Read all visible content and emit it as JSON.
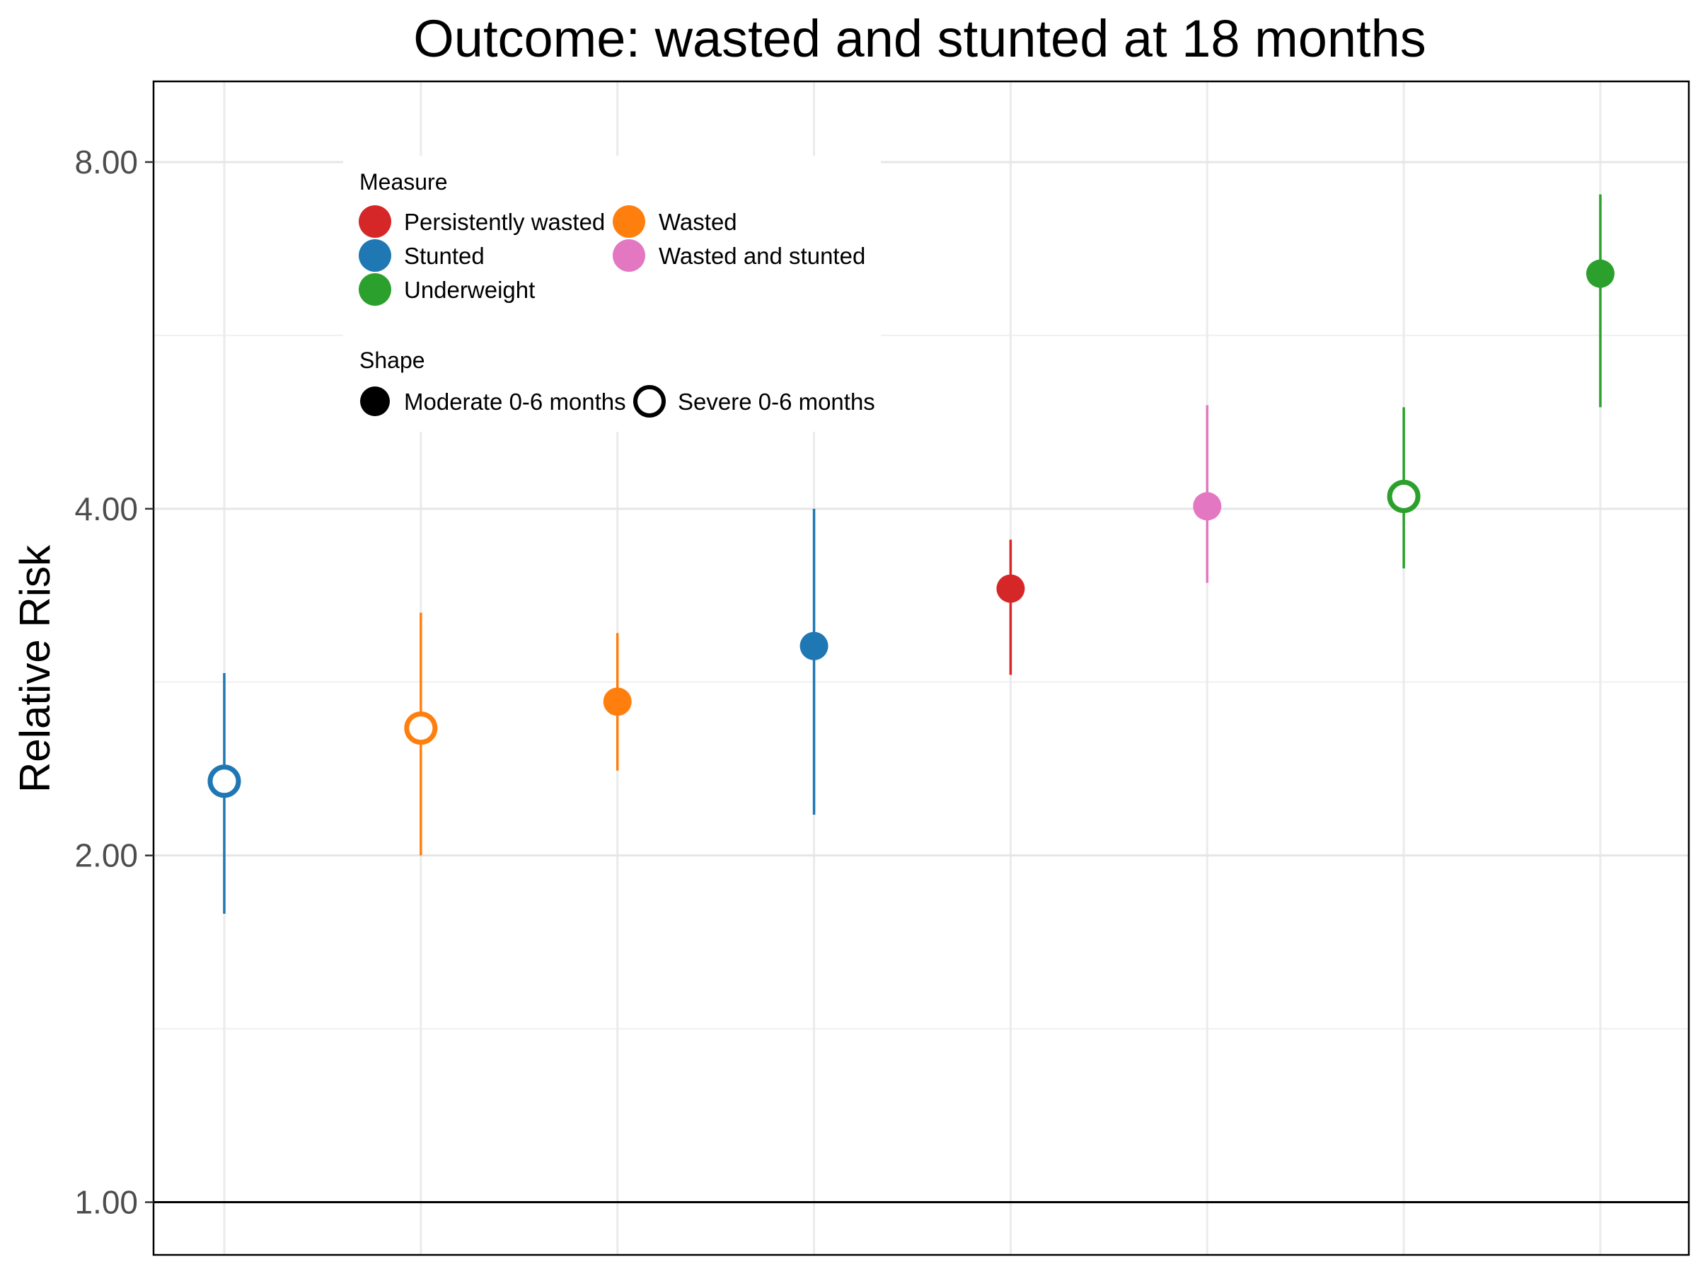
{
  "chart_data": {
    "type": "scatter",
    "title": "Outcome: wasted and stunted at 18 months",
    "ylabel": "Relative Risk",
    "xlabel": "",
    "y_scale": "log2",
    "ylim": [
      0.9,
      9.4
    ],
    "y_ticks": [
      1,
      2,
      4,
      8
    ],
    "y_tick_labels": [
      "1.00",
      "2.00",
      "4.00",
      "8.00"
    ],
    "reference_line": 1,
    "grid": true,
    "legend_position": "top-left",
    "measure_legend": {
      "title": "Measure",
      "items": [
        {
          "label": "Persistently wasted",
          "color": "#d62728"
        },
        {
          "label": "Wasted",
          "color": "#ff7f0e"
        },
        {
          "label": "Stunted",
          "color": "#1f77b4"
        },
        {
          "label": "Wasted and stunted",
          "color": "#e377c2"
        },
        {
          "label": "Underweight",
          "color": "#2ca02c"
        }
      ]
    },
    "shape_legend": {
      "title": "Shape",
      "items": [
        {
          "label": "Moderate 0-6 months",
          "shape": "filled"
        },
        {
          "label": "Severe 0-6 months",
          "shape": "open"
        }
      ]
    },
    "points": [
      {
        "measure": "Stunted",
        "shape": "open",
        "rr": 2.32,
        "lower": 1.78,
        "upper": 2.88
      },
      {
        "measure": "Wasted",
        "shape": "open",
        "rr": 2.58,
        "lower": 2.0,
        "upper": 3.25
      },
      {
        "measure": "Wasted",
        "shape": "filled",
        "rr": 2.72,
        "lower": 2.37,
        "upper": 3.12
      },
      {
        "measure": "Stunted",
        "shape": "filled",
        "rr": 3.04,
        "lower": 2.17,
        "upper": 4.0
      },
      {
        "measure": "Persistently wasted",
        "shape": "filled",
        "rr": 3.41,
        "lower": 2.87,
        "upper": 3.76
      },
      {
        "measure": "Wasted and stunted",
        "shape": "filled",
        "rr": 4.02,
        "lower": 3.45,
        "upper": 4.92
      },
      {
        "measure": "Underweight",
        "shape": "open",
        "rr": 4.1,
        "lower": 3.55,
        "upper": 4.9
      },
      {
        "measure": "Underweight",
        "shape": "filled",
        "rr": 6.4,
        "lower": 4.9,
        "upper": 7.5
      }
    ]
  }
}
